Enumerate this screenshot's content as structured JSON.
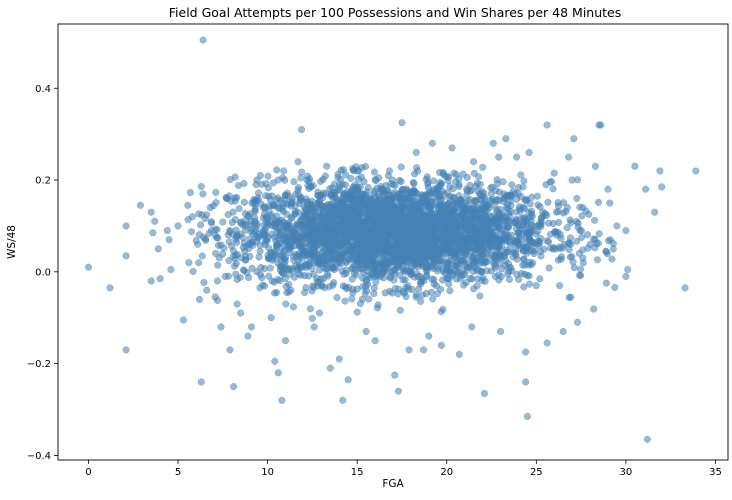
{
  "chart_data": {
    "type": "scatter",
    "title": "Field Goal Attempts per 100 Possessions and Win Shares per 48 Minutes",
    "xlabel": "FGA",
    "ylabel": "WS/48",
    "xlim": [
      -1.7,
      35.7
    ],
    "ylim": [
      -0.41,
      0.54
    ],
    "xticks": [
      0,
      5,
      10,
      15,
      20,
      25,
      30,
      35
    ],
    "yticks": [
      -0.4,
      -0.2,
      0.0,
      0.2,
      0.4
    ],
    "xtick_labels": [
      "0",
      "5",
      "10",
      "15",
      "20",
      "25",
      "30",
      "35"
    ],
    "ytick_labels": [
      "−0.4",
      "−0.2",
      "0.0",
      "0.2",
      "0.4"
    ],
    "grid": false,
    "colors": {
      "points": "#4682b4",
      "point_opacity": 0.55
    },
    "series": [
      {
        "points": [
          {
            "x": 0.0,
            "y": 0.01
          },
          {
            "x": 1.2,
            "y": -0.035
          },
          {
            "x": 2.1,
            "y": -0.17
          },
          {
            "x": 2.1,
            "y": 0.1
          },
          {
            "x": 2.1,
            "y": 0.035
          },
          {
            "x": 2.9,
            "y": 0.145
          },
          {
            "x": 3.5,
            "y": 0.13
          },
          {
            "x": 3.5,
            "y": -0.02
          },
          {
            "x": 3.6,
            "y": 0.085
          },
          {
            "x": 3.7,
            "y": 0.11
          },
          {
            "x": 3.9,
            "y": 0.05
          },
          {
            "x": 4.0,
            "y": -0.015
          },
          {
            "x": 4.4,
            "y": 0.09
          },
          {
            "x": 4.5,
            "y": 0.07
          },
          {
            "x": 4.6,
            "y": 0.005
          },
          {
            "x": 5.3,
            "y": -0.105
          },
          {
            "x": 5.8,
            "y": 0.12
          },
          {
            "x": 6.1,
            "y": 0.06
          },
          {
            "x": 6.4,
            "y": 0.505
          },
          {
            "x": 6.3,
            "y": -0.24
          },
          {
            "x": 6.2,
            "y": -0.06
          },
          {
            "x": 7.1,
            "y": 0.04
          },
          {
            "x": 7.4,
            "y": -0.12
          },
          {
            "x": 7.9,
            "y": -0.17
          },
          {
            "x": 8.1,
            "y": -0.25
          },
          {
            "x": 8.3,
            "y": -0.07
          },
          {
            "x": 9.1,
            "y": -0.12
          },
          {
            "x": 9.6,
            "y": 0.21
          },
          {
            "x": 10.2,
            "y": -0.1
          },
          {
            "x": 10.4,
            "y": -0.195
          },
          {
            "x": 10.6,
            "y": -0.22
          },
          {
            "x": 10.8,
            "y": -0.28
          },
          {
            "x": 11.3,
            "y": -0.04
          },
          {
            "x": 11.7,
            "y": 0.24
          },
          {
            "x": 11.9,
            "y": 0.31
          },
          {
            "x": 12.2,
            "y": 0.2
          },
          {
            "x": 12.6,
            "y": -0.12
          },
          {
            "x": 13.5,
            "y": -0.21
          },
          {
            "x": 14.0,
            "y": -0.19
          },
          {
            "x": 14.2,
            "y": -0.28
          },
          {
            "x": 14.5,
            "y": -0.235
          },
          {
            "x": 15.0,
            "y": 0.22
          },
          {
            "x": 16.0,
            "y": -0.15
          },
          {
            "x": 16.8,
            "y": 0.22
          },
          {
            "x": 17.1,
            "y": -0.225
          },
          {
            "x": 17.3,
            "y": -0.26
          },
          {
            "x": 17.5,
            "y": 0.325
          },
          {
            "x": 17.9,
            "y": -0.17
          },
          {
            "x": 18.3,
            "y": 0.26
          },
          {
            "x": 18.7,
            "y": -0.17
          },
          {
            "x": 19.2,
            "y": 0.28
          },
          {
            "x": 19.7,
            "y": -0.16
          },
          {
            "x": 20.3,
            "y": 0.27
          },
          {
            "x": 20.7,
            "y": -0.18
          },
          {
            "x": 21.5,
            "y": 0.24
          },
          {
            "x": 22.1,
            "y": -0.265
          },
          {
            "x": 22.6,
            "y": 0.28
          },
          {
            "x": 23.3,
            "y": 0.29
          },
          {
            "x": 23.9,
            "y": 0.25
          },
          {
            "x": 24.4,
            "y": -0.24
          },
          {
            "x": 24.5,
            "y": -0.315
          },
          {
            "x": 24.4,
            "y": -0.175
          },
          {
            "x": 25.6,
            "y": -0.155
          },
          {
            "x": 25.6,
            "y": 0.32
          },
          {
            "x": 26.5,
            "y": -0.13
          },
          {
            "x": 26.8,
            "y": 0.25
          },
          {
            "x": 27.1,
            "y": 0.29
          },
          {
            "x": 27.3,
            "y": -0.11
          },
          {
            "x": 27.6,
            "y": 0.14
          },
          {
            "x": 28.3,
            "y": 0.23
          },
          {
            "x": 28.5,
            "y": 0.32
          },
          {
            "x": 28.6,
            "y": 0.32
          },
          {
            "x": 29.0,
            "y": 0.18
          },
          {
            "x": 29.1,
            "y": 0.15
          },
          {
            "x": 29.5,
            "y": 0.1
          },
          {
            "x": 30.0,
            "y": 0.09
          },
          {
            "x": 30.0,
            "y": -0.01
          },
          {
            "x": 30.1,
            "y": 0.005
          },
          {
            "x": 30.5,
            "y": 0.23
          },
          {
            "x": 31.1,
            "y": 0.18
          },
          {
            "x": 31.2,
            "y": -0.365
          },
          {
            "x": 31.6,
            "y": 0.13
          },
          {
            "x": 31.9,
            "y": 0.22
          },
          {
            "x": 32.0,
            "y": 0.185
          },
          {
            "x": 33.3,
            "y": -0.035
          },
          {
            "x": 33.9,
            "y": 0.22
          },
          {
            "x": 26.0,
            "y": 0.215
          },
          {
            "x": 27.0,
            "y": 0.2
          },
          {
            "x": 8.9,
            "y": -0.14
          },
          {
            "x": 11.0,
            "y": -0.15
          },
          {
            "x": 12.9,
            "y": -0.09
          },
          {
            "x": 15.5,
            "y": -0.13
          },
          {
            "x": 19.0,
            "y": -0.14
          },
          {
            "x": 21.4,
            "y": -0.12
          },
          {
            "x": 23.0,
            "y": -0.13
          },
          {
            "x": 25.0,
            "y": -0.03
          },
          {
            "x": 28.0,
            "y": 0.06
          },
          {
            "x": 29.3,
            "y": 0.05
          },
          {
            "x": 26.3,
            "y": -0.03
          },
          {
            "x": 27.6,
            "y": 0.03
          },
          {
            "x": 8.5,
            "y": -0.09
          },
          {
            "x": 9.4,
            "y": 0.2
          },
          {
            "x": 10.9,
            "y": 0.22
          },
          {
            "x": 13.3,
            "y": 0.23
          },
          {
            "x": 22.9,
            "y": 0.25
          },
          {
            "x": 24.6,
            "y": 0.26
          },
          {
            "x": 6.8,
            "y": 0.14
          },
          {
            "x": 5.0,
            "y": 0.1
          },
          {
            "x": 5.6,
            "y": 0.02
          },
          {
            "x": 7.2,
            "y": -0.02
          },
          {
            "x": 6.6,
            "y": -0.04
          },
          {
            "x": 7.7,
            "y": 0.16
          }
        ],
        "dense_cloud": {
          "x_range": [
            5.5,
            29.5
          ],
          "y_range": [
            -0.11,
            0.23
          ],
          "count": 3600,
          "dense_x_range": [
            10,
            24
          ],
          "dense_y_range": [
            -0.05,
            0.2
          ],
          "center_y": 0.085
        }
      }
    ]
  }
}
